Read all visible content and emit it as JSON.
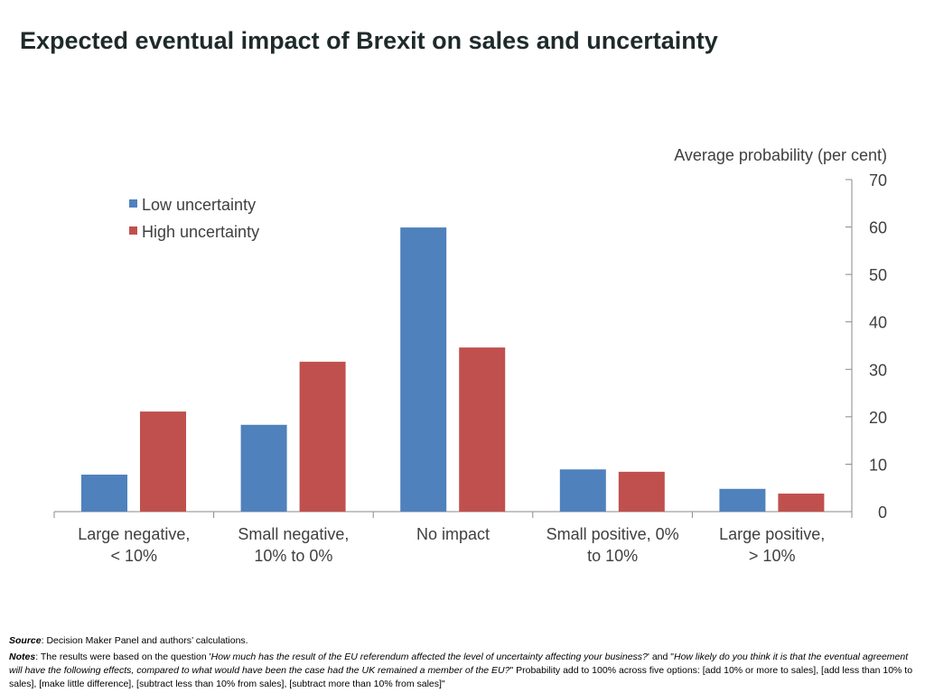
{
  "title": "Expected eventual impact of Brexit on sales and uncertainty",
  "chart_data": {
    "type": "bar",
    "title": "Expected eventual impact of Brexit on sales and uncertainty",
    "ylabel": "Average probability (per cent)",
    "xlabel": "",
    "ylim": [
      0,
      70
    ],
    "yticks": [
      0,
      10,
      20,
      30,
      40,
      50,
      60,
      70
    ],
    "y_axis_side": "right",
    "grid": false,
    "legend_position": "top-left",
    "categories": [
      [
        "Large negative,",
        "< 10%"
      ],
      [
        "Small negative,",
        "10% to 0%"
      ],
      [
        "No impact"
      ],
      [
        "Small positive, 0%",
        "to 10%"
      ],
      [
        "Large positive,",
        "> 10%"
      ]
    ],
    "series": [
      {
        "name": "Low uncertainty",
        "color": "#4F81BD",
        "values": [
          7.8,
          18.3,
          59.9,
          8.9,
          4.8
        ]
      },
      {
        "name": "High uncertainty",
        "color": "#C0504D",
        "values": [
          21.1,
          31.6,
          34.6,
          8.4,
          3.8
        ]
      }
    ]
  },
  "footer": {
    "source_label": "Source",
    "source_text": ": Decision Maker Panel and authors’ calculations.",
    "notes_label": "Notes",
    "notes_1": ": The results were based on the question '",
    "notes_q1": "How much has the result of the EU referendum affected the level of uncertainty affecting your business?",
    "notes_2": "' and \"",
    "notes_q2": "How likely do you think it is that the eventual agreement will have the following effects, compared to what would have been the case had the UK remained a member of the EU?",
    "notes_3": "\"  Probability add to 100% across five options: [add 10% or more to sales], [add less than 10% to sales], [make little difference], [subtract less than 10% from sales], [subtract more than 10% from sales]\""
  }
}
